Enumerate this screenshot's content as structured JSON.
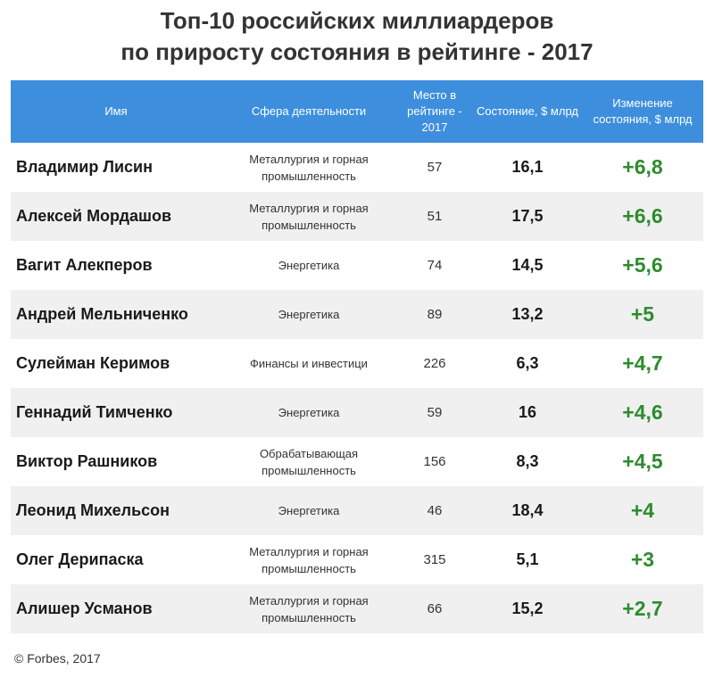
{
  "title": {
    "line1": "Топ-10 российских миллиардеров",
    "line2": "по приросту состояния в рейтинге - 2017"
  },
  "source": "© Forbes, 2017",
  "colors": {
    "header_bg": "#3d8fdd",
    "change_text": "#2e8b2e",
    "row_alt": "#f0f0f0"
  },
  "chart_data": {
    "type": "table",
    "title": "Топ-10 российских миллиардеров по приросту состояния в рейтинге - 2017",
    "columns": [
      "Имя",
      "Сфера деятельности",
      "Место в рейтинге - 2017",
      "Состояние, $ млрд",
      "Изменение состояния, $ млрд"
    ],
    "rows": [
      {
        "name": "Владимир Лисин",
        "sector": "Металлургия и горная промышленность",
        "rank": "57",
        "worth": "16,1",
        "change": "+6,8"
      },
      {
        "name": "Алексей Мордашов",
        "sector": "Металлургия и горная промышленность",
        "rank": "51",
        "worth": "17,5",
        "change": "+6,6"
      },
      {
        "name": "Вагит Алекперов",
        "sector": "Энергетика",
        "rank": "74",
        "worth": "14,5",
        "change": "+5,6"
      },
      {
        "name": "Андрей Мельниченко",
        "sector": "Энергетика",
        "rank": "89",
        "worth": "13,2",
        "change": "+5"
      },
      {
        "name": "Сулейман Керимов",
        "sector": "Финансы и инвестици",
        "rank": "226",
        "worth": "6,3",
        "change": "+4,7"
      },
      {
        "name": "Геннадий Тимченко",
        "sector": "Энергетика",
        "rank": "59",
        "worth": "16",
        "change": "+4,6"
      },
      {
        "name": "Виктор Рашников",
        "sector": "Обрабатывающая промышленность",
        "rank": "156",
        "worth": "8,3",
        "change": "+4,5"
      },
      {
        "name": "Леонид Михельсон",
        "sector": "Энергетика",
        "rank": "46",
        "worth": "18,4",
        "change": "+4"
      },
      {
        "name": "Олег Дерипаска",
        "sector": "Металлургия и горная промышленность",
        "rank": "315",
        "worth": "5,1",
        "change": "+3"
      },
      {
        "name": "Алишер Усманов",
        "sector": "Металлургия и горная промышленность",
        "rank": "66",
        "worth": "15,2",
        "change": "+2,7"
      }
    ]
  }
}
